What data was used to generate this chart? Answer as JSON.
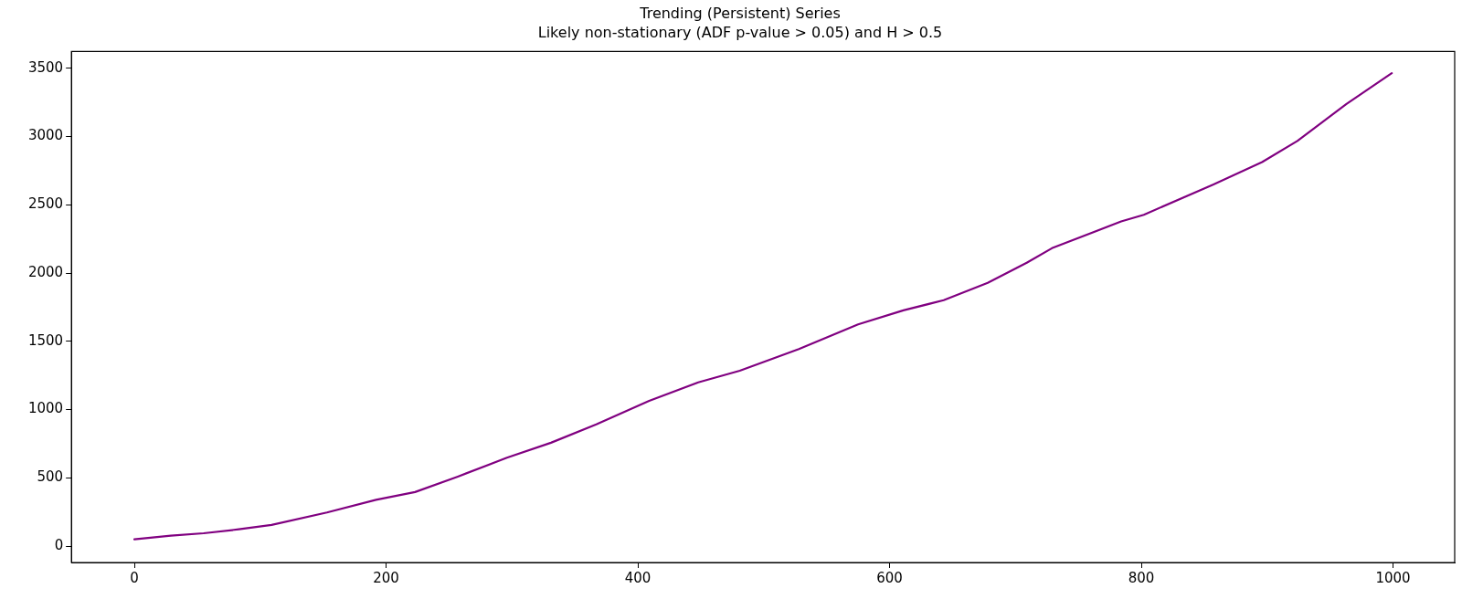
{
  "chart_data": {
    "type": "line",
    "title": "Trending (Persistent) Series",
    "subtitle": "Likely non-stationary (ADF p-value > 0.05) and H > 0.5",
    "series": [
      {
        "color": "#800080",
        "x": [
          0,
          29,
          55,
          83,
          109,
          153,
          192,
          223,
          257,
          296,
          331,
          367,
          409,
          448,
          481,
          528,
          575,
          611,
          643,
          678,
          709,
          729,
          784,
          802,
          857,
          896,
          924,
          963,
          999
        ],
        "values": [
          50,
          76,
          94,
          123,
          155,
          246,
          339,
          396,
          509,
          647,
          757,
          892,
          1064,
          1199,
          1285,
          1444,
          1624,
          1727,
          1801,
          1928,
          2076,
          2182,
          2378,
          2427,
          2648,
          2813,
          2968,
          3238,
          3464
        ]
      }
    ],
    "xlim": [
      -50,
      1049
    ],
    "xticks": [
      0,
      200,
      400,
      600,
      800,
      1000
    ],
    "ylim": [
      -120,
      3623
    ],
    "yticks": [
      0,
      500,
      1000,
      1500,
      2000,
      2500,
      3000,
      3500
    ],
    "grid": false,
    "legend": false,
    "line_style": "solid",
    "marker": "none"
  }
}
